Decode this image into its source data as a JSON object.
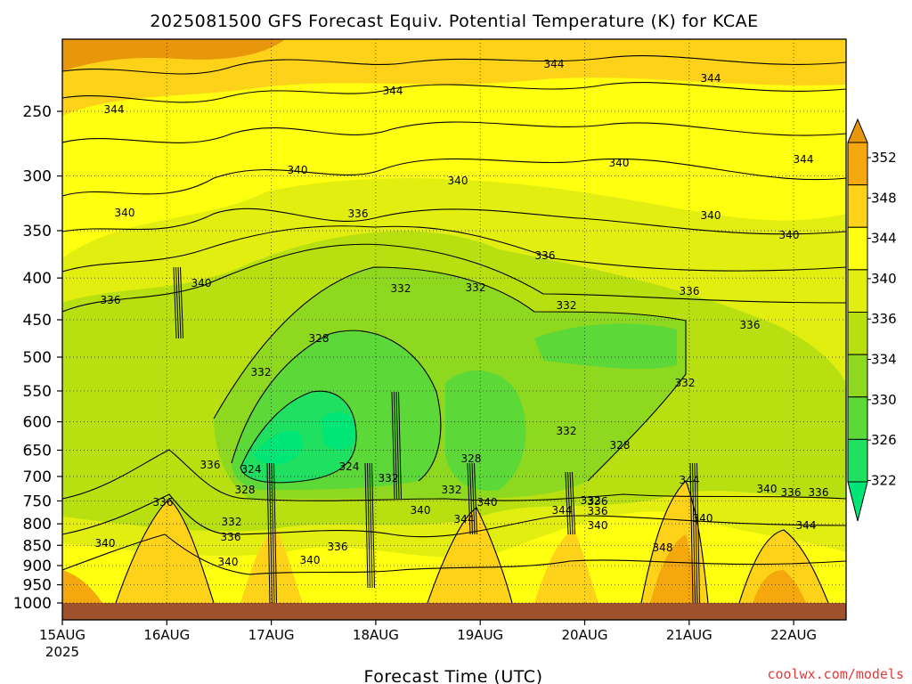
{
  "chart_data": {
    "type": "heatmap",
    "title": "2025081500 GFS Forecast Equiv. Potential Temperature (K) for KCAE",
    "xlabel": "Forecast Time (UTC)",
    "ylabel": "",
    "y_axis": {
      "scale": "log",
      "inverted": true,
      "range": [
        200,
        1000
      ],
      "ticks": [
        "250",
        "300",
        "350",
        "400",
        "450",
        "500",
        "550",
        "600",
        "650",
        "700",
        "750",
        "800",
        "850",
        "900",
        "950",
        "1000"
      ]
    },
    "x_axis": {
      "range": [
        "15AUG 00Z",
        "22AUG 12Z"
      ],
      "ticks": [
        {
          "label": "15AUG",
          "sub": "2025"
        },
        {
          "label": "16AUG",
          "sub": ""
        },
        {
          "label": "17AUG",
          "sub": ""
        },
        {
          "label": "18AUG",
          "sub": ""
        },
        {
          "label": "19AUG",
          "sub": ""
        },
        {
          "label": "20AUG",
          "sub": ""
        },
        {
          "label": "21AUG",
          "sub": ""
        },
        {
          "label": "22AUG",
          "sub": ""
        }
      ]
    },
    "grid": true,
    "colorbar": {
      "labels": [
        "322",
        "326",
        "330",
        "334",
        "336",
        "340",
        "344",
        "348",
        "352"
      ],
      "colors": [
        "#00e676",
        "#1fe060",
        "#5cd838",
        "#8ed820",
        "#b8e010",
        "#e2ee10",
        "#ffff10",
        "#ffd21a",
        "#f5a80e",
        "#e8960a"
      ]
    },
    "contour_labels": [
      "344",
      "344",
      "344",
      "344",
      "344",
      "340",
      "340",
      "340",
      "340",
      "340",
      "340",
      "340",
      "340",
      "336",
      "336",
      "336",
      "336",
      "336",
      "336",
      "332",
      "332",
      "332",
      "332",
      "332",
      "332",
      "328",
      "328",
      "328",
      "324",
      "324",
      "332",
      "336",
      "340",
      "344",
      "340",
      "336",
      "332",
      "332",
      "344",
      "336",
      "340",
      "348",
      "344",
      "340",
      "340",
      "336",
      "344",
      "340",
      "340",
      "336",
      "336",
      "336",
      "328",
      "332"
    ]
  },
  "watermark": "coolwx.com/models"
}
